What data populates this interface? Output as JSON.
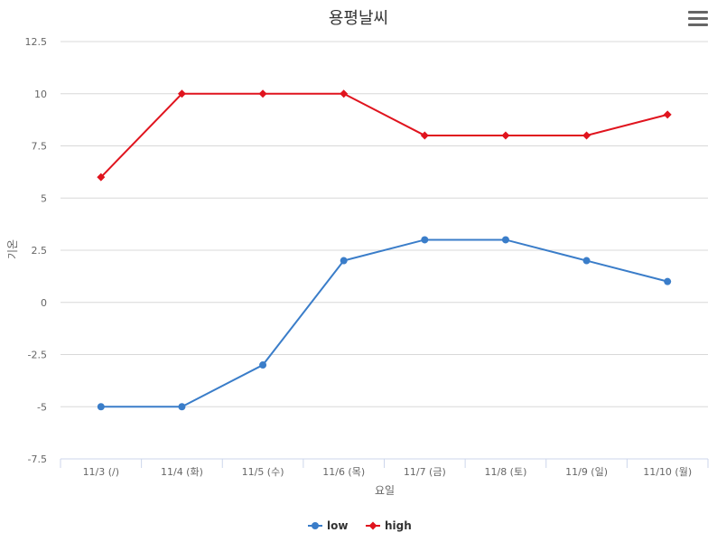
{
  "chart_data": {
    "type": "line",
    "title": "용평날씨",
    "xlabel": "요일",
    "ylabel": "기온",
    "categories": [
      "11/3 (/)",
      "11/4 (화)",
      "11/5 (수)",
      "11/6 (목)",
      "11/7 (금)",
      "11/8 (토)",
      "11/9 (일)",
      "11/10 (월)"
    ],
    "ylim": [
      -7.5,
      12.5
    ],
    "yticks": [
      "-7.5",
      "-5",
      "-2.5",
      "0",
      "2.5",
      "5",
      "7.5",
      "10",
      "12.5"
    ],
    "grid": true,
    "legend": "bottom-center",
    "series": [
      {
        "name": "low",
        "color": "#3a7dc9",
        "marker": "circle",
        "values": [
          -5,
          -5,
          -3,
          2,
          3,
          3,
          2,
          1
        ]
      },
      {
        "name": "high",
        "color": "#e0141e",
        "marker": "diamond",
        "values": [
          6,
          10,
          10,
          10,
          8,
          8,
          8,
          9
        ]
      }
    ]
  },
  "menu": {
    "icon": "hamburger-menu-icon"
  }
}
